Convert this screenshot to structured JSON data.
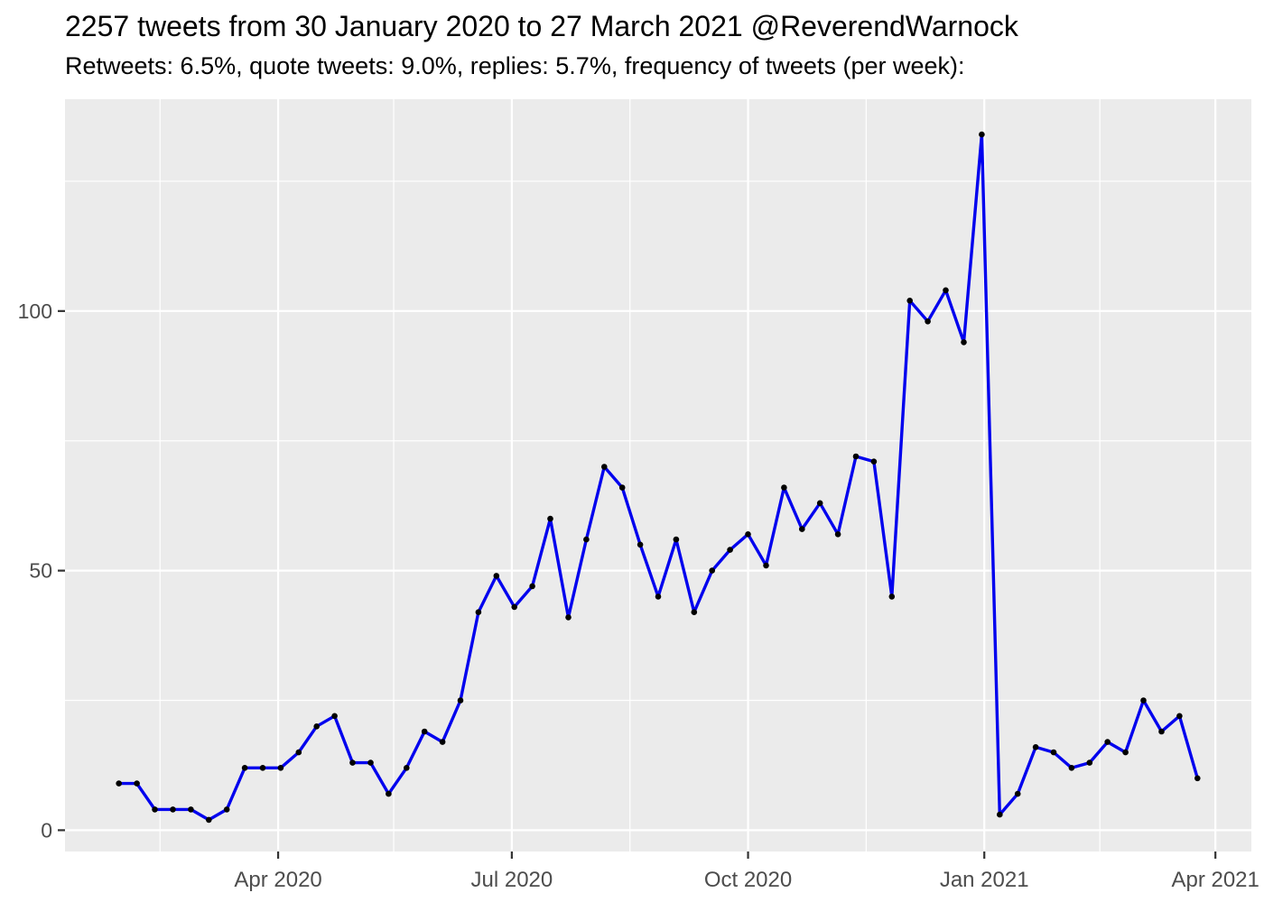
{
  "header": {
    "title": "2257 tweets from 30 January 2020 to 27 March 2021 @ReverendWarnock",
    "subtitle": "Retweets: 6.5%, quote tweets: 9.0%, replies: 5.7%, frequency of tweets (per week):"
  },
  "chart_data": {
    "type": "line",
    "title": "2257 tweets from 30 January 2020 to 27 March 2021 @ReverendWarnock",
    "subtitle": "Retweets: 6.5%, quote tweets: 9.0%, replies: 5.7%, frequency of tweets (per week):",
    "xlabel": "",
    "ylabel": "",
    "total_tweets": 2257,
    "series_name": "tweets per week",
    "x": [
      "2020-01-30",
      "2020-02-06",
      "2020-02-13",
      "2020-02-20",
      "2020-02-27",
      "2020-03-05",
      "2020-03-12",
      "2020-03-19",
      "2020-03-26",
      "2020-04-02",
      "2020-04-09",
      "2020-04-16",
      "2020-04-23",
      "2020-04-30",
      "2020-05-07",
      "2020-05-14",
      "2020-05-21",
      "2020-05-28",
      "2020-06-04",
      "2020-06-11",
      "2020-06-18",
      "2020-06-25",
      "2020-07-02",
      "2020-07-09",
      "2020-07-16",
      "2020-07-23",
      "2020-07-30",
      "2020-08-06",
      "2020-08-13",
      "2020-08-20",
      "2020-08-27",
      "2020-09-03",
      "2020-09-10",
      "2020-09-17",
      "2020-09-24",
      "2020-10-01",
      "2020-10-08",
      "2020-10-15",
      "2020-10-22",
      "2020-10-29",
      "2020-11-05",
      "2020-11-12",
      "2020-11-19",
      "2020-11-26",
      "2020-12-03",
      "2020-12-10",
      "2020-12-17",
      "2020-12-24",
      "2020-12-31",
      "2021-01-07",
      "2021-01-14",
      "2021-01-21",
      "2021-01-28",
      "2021-02-04",
      "2021-02-11",
      "2021-02-18",
      "2021-02-25",
      "2021-03-04",
      "2021-03-11",
      "2021-03-18",
      "2021-03-25"
    ],
    "values": [
      9,
      9,
      4,
      4,
      4,
      2,
      4,
      12,
      12,
      12,
      15,
      20,
      22,
      13,
      13,
      7,
      12,
      19,
      17,
      25,
      42,
      49,
      43,
      47,
      60,
      41,
      56,
      70,
      66,
      55,
      45,
      56,
      42,
      50,
      54,
      57,
      51,
      66,
      58,
      63,
      57,
      72,
      71,
      45,
      102,
      98,
      104,
      94,
      134,
      3,
      7,
      16,
      15,
      12,
      13,
      17,
      15,
      25,
      19,
      22,
      10
    ],
    "x_ticks": [
      {
        "label": "Apr 2020",
        "date": "2020-04-01"
      },
      {
        "label": "Jul 2020",
        "date": "2020-07-01"
      },
      {
        "label": "Oct 2020",
        "date": "2020-10-01"
      },
      {
        "label": "Jan 2021",
        "date": "2021-01-01"
      },
      {
        "label": "Apr 2021",
        "date": "2021-04-01"
      }
    ],
    "x_minor_dates": [
      "2020-02-15",
      "2020-05-16",
      "2020-08-16",
      "2020-11-16",
      "2021-02-15"
    ],
    "y_ticks": [
      0,
      50,
      100
    ],
    "y_minor_ticks": [
      25,
      75,
      125
    ],
    "x_domain": [
      "2020-01-09",
      "2021-04-15"
    ],
    "y_domain": [
      -4.1,
      140.8
    ],
    "grid": "on",
    "legend": "none",
    "colors": {
      "line": "#0000EE",
      "point": "#000000",
      "panel_background": "#EBEBEB",
      "grid_major": "#FFFFFF",
      "grid_minor": "#FFFFFF",
      "axis_text": "#4D4D4D",
      "tick_mark": "#333333",
      "title_text": "#000000",
      "page_background": "#FFFFFF"
    }
  }
}
